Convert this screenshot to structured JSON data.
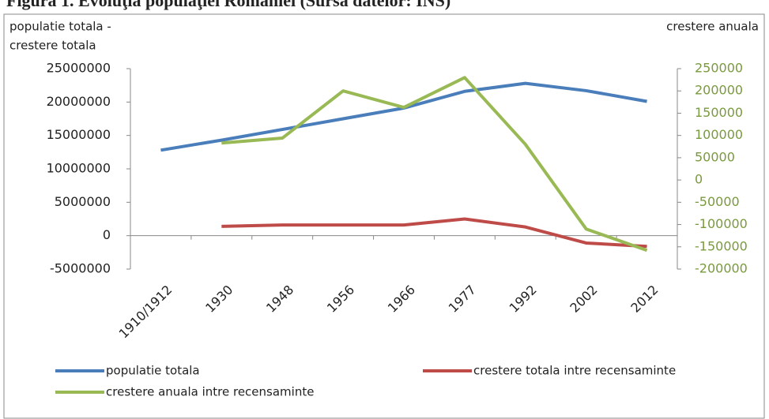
{
  "chart_data": {
    "type": "line",
    "title": "Figura 1. Evoluţia populaţiei României (Sursa datelor: INS)",
    "y_label": [
      "populatie totala -",
      "crestere totala"
    ],
    "y2_label": "crestere anuala",
    "categories": [
      "1910/1912",
      "1930",
      "1948",
      "1956",
      "1966",
      "1977",
      "1992",
      "2002",
      "2012"
    ],
    "series": [
      {
        "name": "populatie totala",
        "color": "#4a7ebb",
        "values": [
          12800000,
          14300000,
          15900000,
          17500000,
          19100000,
          21600000,
          22800000,
          21700000,
          20100000
        ]
      },
      {
        "name": "crestere totala intre recensaminte",
        "color": "#be4b48",
        "values": [
          null,
          1400000,
          1600000,
          1600000,
          1600000,
          2500000,
          1300000,
          -1100000,
          -1600000
        ]
      },
      {
        "name": "crestere anuala intre recensaminte",
        "color": "#98b954",
        "axis": "y2",
        "values": [
          null,
          83000,
          94000,
          200000,
          163000,
          230000,
          80000,
          -110000,
          -158000
        ]
      }
    ],
    "ylim": [
      -5000000,
      25000000
    ],
    "yticks": [
      -5000000,
      0,
      5000000,
      10000000,
      15000000,
      20000000,
      25000000
    ],
    "y2lim": [
      -200000,
      250000
    ],
    "y2ticks": [
      -200000,
      -150000,
      -100000,
      -50000,
      0,
      50000,
      100000,
      150000,
      200000,
      250000
    ],
    "grid": false,
    "legend": "bottom"
  }
}
